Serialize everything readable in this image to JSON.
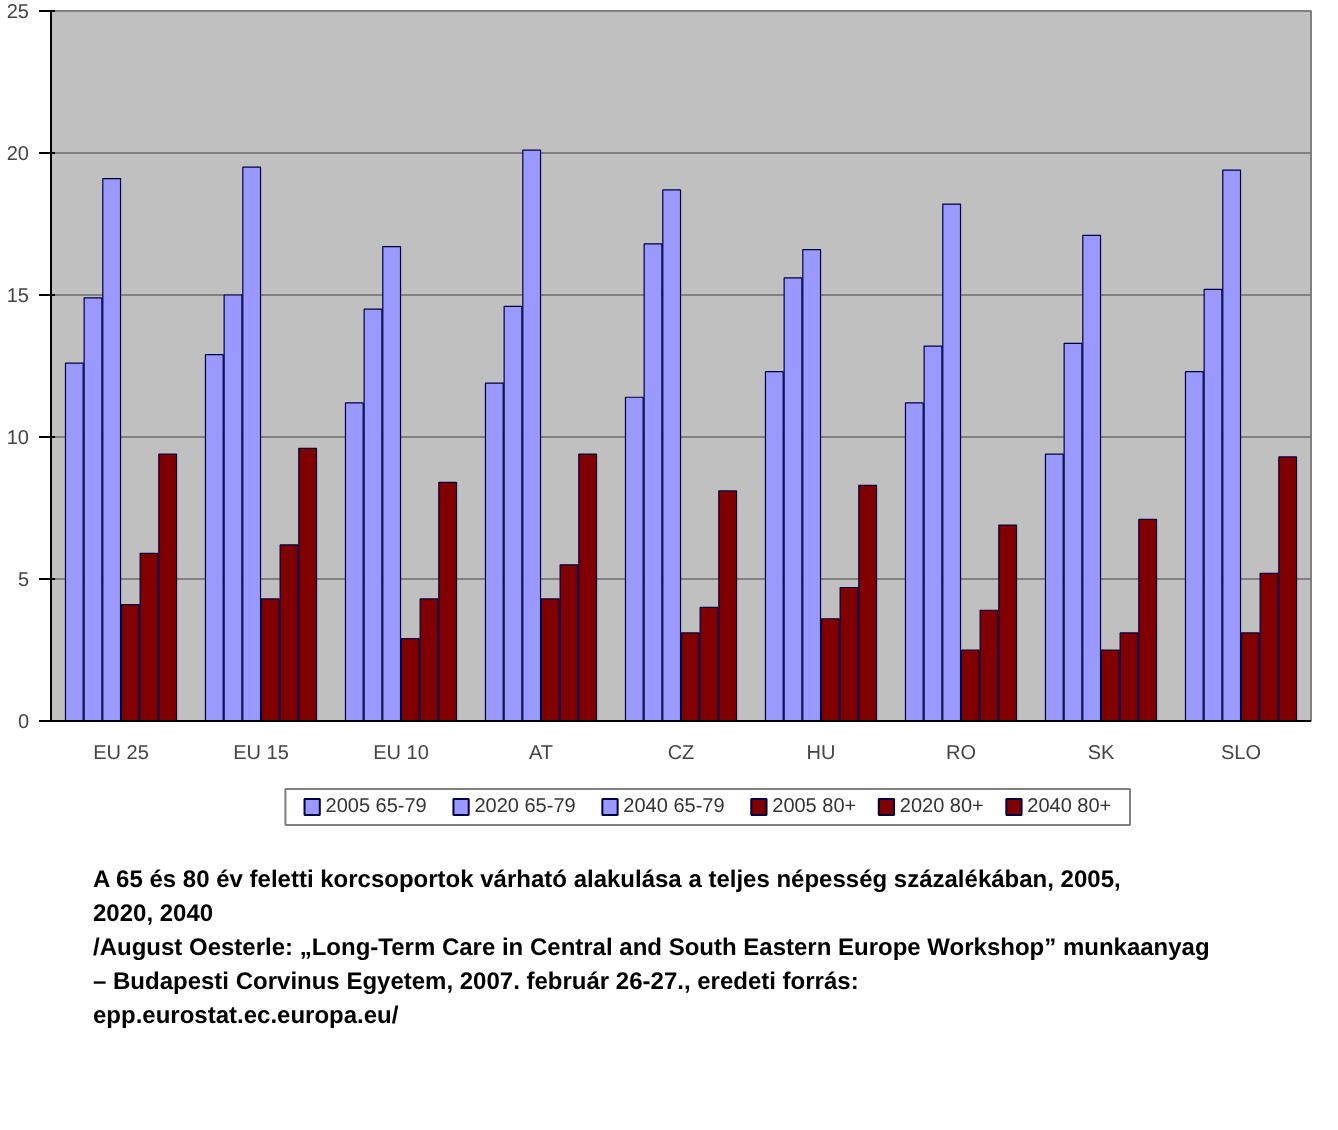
{
  "chart_data": {
    "type": "bar",
    "categories": [
      "EU 25",
      "EU 15",
      "EU 10",
      "AT",
      "CZ",
      "HU",
      "RO",
      "SK",
      "SLO"
    ],
    "series": [
      {
        "name": "2005 65-79",
        "color": "#9999ff",
        "values": [
          12.6,
          12.9,
          11.2,
          11.9,
          11.4,
          12.3,
          11.2,
          9.4,
          12.3
        ]
      },
      {
        "name": "2020 65-79",
        "color": "#9999ff",
        "values": [
          14.9,
          15.0,
          14.5,
          14.6,
          16.8,
          15.6,
          13.2,
          13.3,
          15.2
        ]
      },
      {
        "name": "2040 65-79",
        "color": "#9999ff",
        "values": [
          19.1,
          19.5,
          16.7,
          20.1,
          18.7,
          16.6,
          18.2,
          17.1,
          19.4
        ]
      },
      {
        "name": "2005 80+",
        "color": "#800000",
        "values": [
          4.1,
          4.3,
          2.9,
          4.3,
          3.1,
          3.6,
          2.5,
          2.5,
          3.1
        ]
      },
      {
        "name": "2020 80+",
        "color": "#800000",
        "values": [
          5.9,
          6.2,
          4.3,
          5.5,
          4.0,
          4.7,
          3.9,
          3.1,
          5.2
        ]
      },
      {
        "name": "2040 80+",
        "color": "#800000",
        "values": [
          9.4,
          9.6,
          8.4,
          9.4,
          8.1,
          8.3,
          6.9,
          7.1,
          9.3
        ]
      }
    ],
    "ylim": [
      0,
      25
    ],
    "yticks": [
      0,
      5,
      10,
      15,
      20,
      25
    ],
    "grid": "y",
    "legend": "bottom",
    "annotations": [
      "A 65 és 80 év feletti korcsoportok várható alakulása a teljes népesség százalékában, 2005, 2020, 2040",
      "/August Oesterle: „Long-Term Care in Central and South Eastern Europe Workshop” munkaanyag – Budapesti Corvinus Egyetem, 2007. február 26-27., eredeti forrás: epp.eurostat.ec.europa.eu/"
    ]
  }
}
